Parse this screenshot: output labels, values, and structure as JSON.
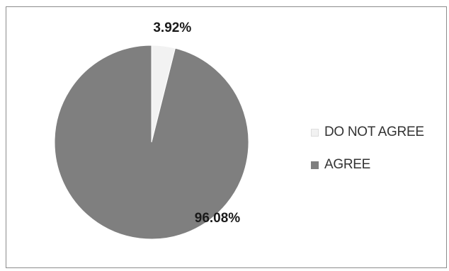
{
  "chart_data": {
    "type": "pie",
    "title": "",
    "categories": [
      "DO NOT AGREE",
      "AGREE"
    ],
    "values": [
      3.92,
      96.08
    ],
    "data_labels": [
      "3.92%",
      "96.08%"
    ],
    "colors": [
      "#f2f2f2",
      "#7f7f7f"
    ],
    "start_angle_deg": 0,
    "direction": "clockwise",
    "legend_position": "right"
  }
}
